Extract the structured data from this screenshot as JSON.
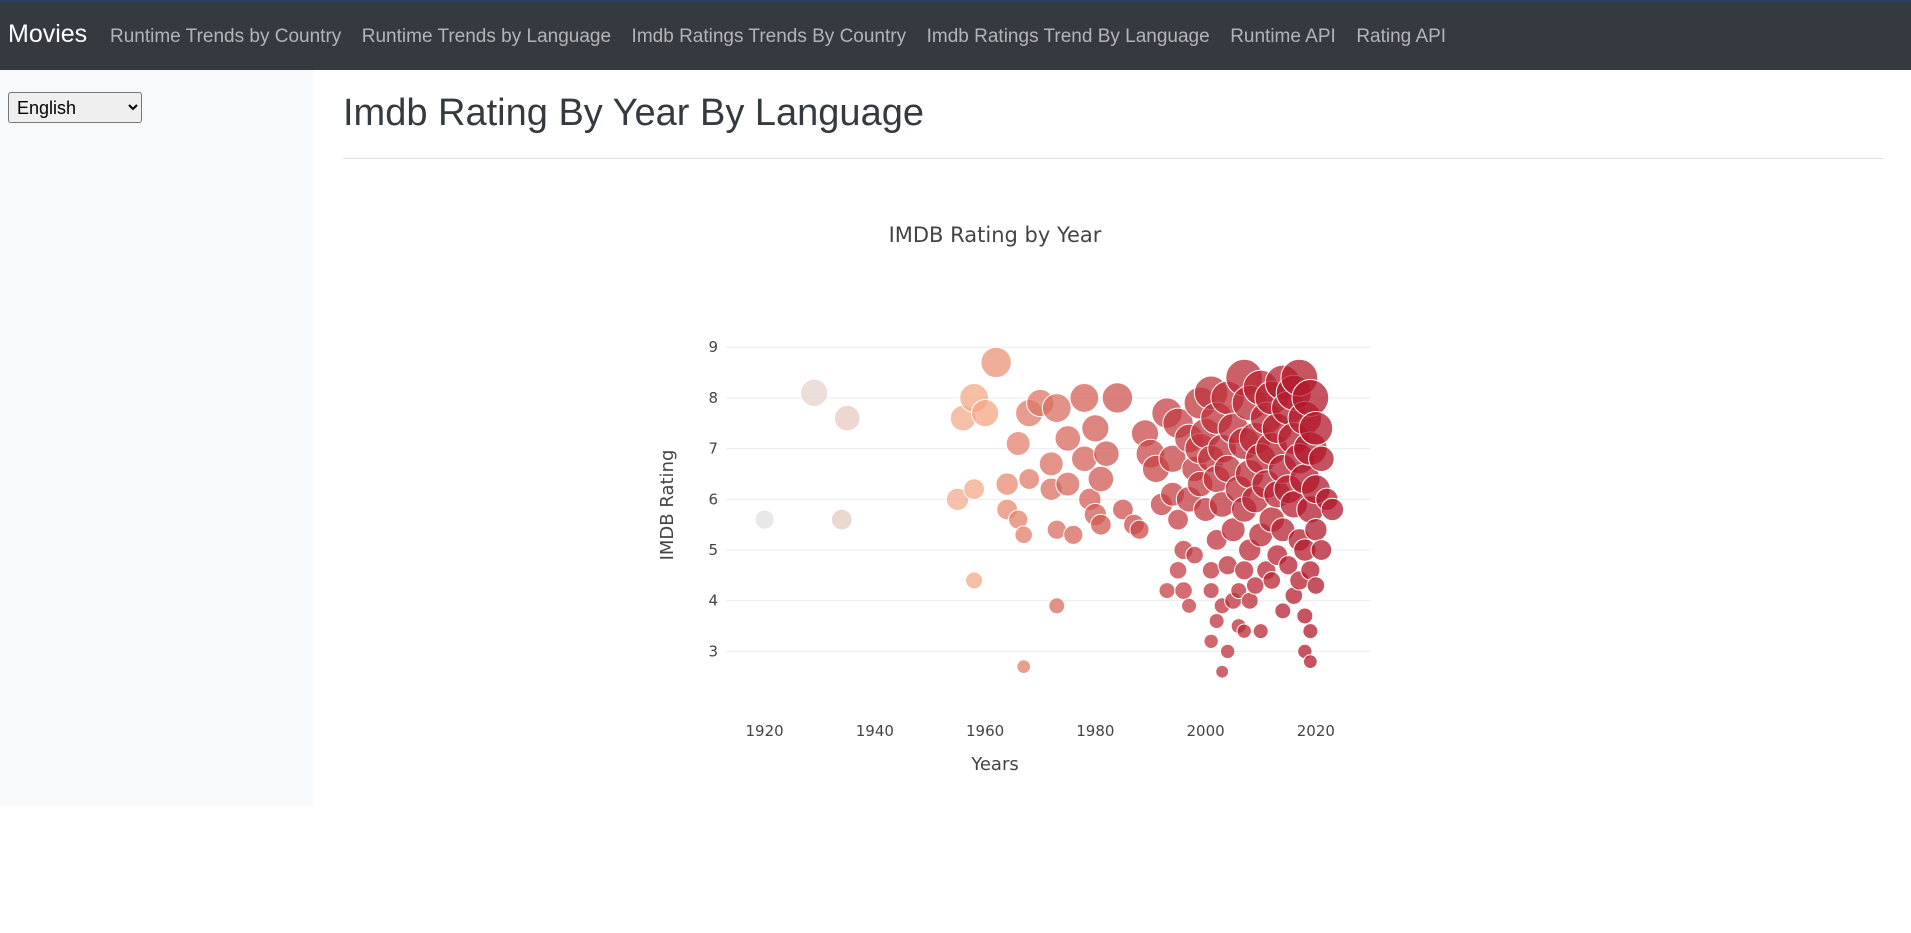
{
  "navbar": {
    "brand": "Movies",
    "links": [
      "Runtime Trends by Country",
      "Runtime Trends by Language",
      "Imdb Ratings Trends By Country",
      "Imdb Ratings Trend By Language",
      "Runtime API",
      "Rating API"
    ]
  },
  "sidebar": {
    "language_select": {
      "value": "English",
      "options": [
        "English"
      ]
    }
  },
  "main": {
    "page_title": "Imdb Rating By Year By Language"
  },
  "colors": {
    "navbar_bg": "#343a40",
    "sidebar_bg": "#f8f9fa",
    "scale_low": "#e0e0e0",
    "scale_mid": "#f4a582",
    "scale_high": "#b2182b"
  },
  "chart_data": {
    "type": "scatter",
    "title": "IMDB Rating by Year",
    "xlabel": "Years",
    "ylabel": "IMDB Rating",
    "xlim": [
      1913,
      2030
    ],
    "ylim": [
      2.2,
      9.3
    ],
    "xticks": [
      1920,
      1940,
      1960,
      1980,
      2000,
      2020
    ],
    "yticks": [
      3,
      4,
      5,
      6,
      7,
      8,
      9
    ],
    "marker_size_encodes": "votes (relative)",
    "marker_color_encodes": "year",
    "grid": true,
    "points": [
      {
        "x": 1920,
        "y": 5.6,
        "s": 0.35
      },
      {
        "x": 1929,
        "y": 8.1,
        "s": 0.6
      },
      {
        "x": 1934,
        "y": 5.6,
        "s": 0.4
      },
      {
        "x": 1935,
        "y": 7.6,
        "s": 0.55
      },
      {
        "x": 1955,
        "y": 6.0,
        "s": 0.45
      },
      {
        "x": 1956,
        "y": 7.6,
        "s": 0.55
      },
      {
        "x": 1958,
        "y": 8.0,
        "s": 0.65
      },
      {
        "x": 1958,
        "y": 6.2,
        "s": 0.4
      },
      {
        "x": 1958,
        "y": 4.4,
        "s": 0.28
      },
      {
        "x": 1960,
        "y": 7.7,
        "s": 0.6
      },
      {
        "x": 1962,
        "y": 8.7,
        "s": 0.7
      },
      {
        "x": 1964,
        "y": 6.3,
        "s": 0.45
      },
      {
        "x": 1964,
        "y": 5.8,
        "s": 0.4
      },
      {
        "x": 1966,
        "y": 7.1,
        "s": 0.5
      },
      {
        "x": 1966,
        "y": 5.6,
        "s": 0.35
      },
      {
        "x": 1967,
        "y": 5.3,
        "s": 0.3
      },
      {
        "x": 1967,
        "y": 2.7,
        "s": 0.18
      },
      {
        "x": 1968,
        "y": 7.7,
        "s": 0.6
      },
      {
        "x": 1968,
        "y": 6.4,
        "s": 0.4
      },
      {
        "x": 1970,
        "y": 7.9,
        "s": 0.6
      },
      {
        "x": 1972,
        "y": 6.7,
        "s": 0.5
      },
      {
        "x": 1972,
        "y": 6.2,
        "s": 0.45
      },
      {
        "x": 1973,
        "y": 7.8,
        "s": 0.65
      },
      {
        "x": 1973,
        "y": 5.4,
        "s": 0.35
      },
      {
        "x": 1973,
        "y": 3.9,
        "s": 0.25
      },
      {
        "x": 1975,
        "y": 7.2,
        "s": 0.55
      },
      {
        "x": 1975,
        "y": 6.3,
        "s": 0.5
      },
      {
        "x": 1976,
        "y": 5.3,
        "s": 0.35
      },
      {
        "x": 1978,
        "y": 8.0,
        "s": 0.65
      },
      {
        "x": 1978,
        "y": 6.8,
        "s": 0.55
      },
      {
        "x": 1979,
        "y": 6.0,
        "s": 0.45
      },
      {
        "x": 1980,
        "y": 7.4,
        "s": 0.6
      },
      {
        "x": 1980,
        "y": 5.7,
        "s": 0.45
      },
      {
        "x": 1981,
        "y": 6.4,
        "s": 0.55
      },
      {
        "x": 1981,
        "y": 5.5,
        "s": 0.4
      },
      {
        "x": 1982,
        "y": 6.9,
        "s": 0.55
      },
      {
        "x": 1984,
        "y": 8.0,
        "s": 0.7
      },
      {
        "x": 1985,
        "y": 5.8,
        "s": 0.4
      },
      {
        "x": 1987,
        "y": 5.5,
        "s": 0.4
      },
      {
        "x": 1988,
        "y": 5.4,
        "s": 0.35
      },
      {
        "x": 1989,
        "y": 7.3,
        "s": 0.6
      },
      {
        "x": 1990,
        "y": 6.9,
        "s": 0.65
      },
      {
        "x": 1991,
        "y": 6.6,
        "s": 0.6
      },
      {
        "x": 1992,
        "y": 5.9,
        "s": 0.45
      },
      {
        "x": 1993,
        "y": 7.7,
        "s": 0.7
      },
      {
        "x": 1993,
        "y": 4.2,
        "s": 0.25
      },
      {
        "x": 1994,
        "y": 6.8,
        "s": 0.6
      },
      {
        "x": 1994,
        "y": 6.1,
        "s": 0.5
      },
      {
        "x": 1995,
        "y": 7.5,
        "s": 0.7
      },
      {
        "x": 1995,
        "y": 5.6,
        "s": 0.4
      },
      {
        "x": 1995,
        "y": 4.6,
        "s": 0.3
      },
      {
        "x": 1996,
        "y": 5.0,
        "s": 0.35
      },
      {
        "x": 1996,
        "y": 4.2,
        "s": 0.3
      },
      {
        "x": 1997,
        "y": 7.2,
        "s": 0.65
      },
      {
        "x": 1997,
        "y": 6.0,
        "s": 0.55
      },
      {
        "x": 1997,
        "y": 3.9,
        "s": 0.22
      },
      {
        "x": 1998,
        "y": 6.6,
        "s": 0.55
      },
      {
        "x": 1998,
        "y": 4.9,
        "s": 0.3
      },
      {
        "x": 1999,
        "y": 7.9,
        "s": 0.75
      },
      {
        "x": 1999,
        "y": 7.0,
        "s": 0.7
      },
      {
        "x": 1999,
        "y": 6.3,
        "s": 0.55
      },
      {
        "x": 2000,
        "y": 5.8,
        "s": 0.5
      },
      {
        "x": 2000,
        "y": 7.3,
        "s": 0.7
      },
      {
        "x": 2001,
        "y": 8.1,
        "s": 0.8
      },
      {
        "x": 2001,
        "y": 6.8,
        "s": 0.6
      },
      {
        "x": 2001,
        "y": 4.6,
        "s": 0.3
      },
      {
        "x": 2001,
        "y": 4.2,
        "s": 0.25
      },
      {
        "x": 2001,
        "y": 3.2,
        "s": 0.2
      },
      {
        "x": 2002,
        "y": 7.6,
        "s": 0.75
      },
      {
        "x": 2002,
        "y": 6.4,
        "s": 0.6
      },
      {
        "x": 2002,
        "y": 5.2,
        "s": 0.4
      },
      {
        "x": 2002,
        "y": 3.6,
        "s": 0.22
      },
      {
        "x": 2003,
        "y": 7.0,
        "s": 0.65
      },
      {
        "x": 2003,
        "y": 5.9,
        "s": 0.55
      },
      {
        "x": 2003,
        "y": 3.9,
        "s": 0.25
      },
      {
        "x": 2003,
        "y": 2.6,
        "s": 0.15
      },
      {
        "x": 2004,
        "y": 8.0,
        "s": 0.8
      },
      {
        "x": 2004,
        "y": 6.6,
        "s": 0.6
      },
      {
        "x": 2004,
        "y": 4.7,
        "s": 0.35
      },
      {
        "x": 2004,
        "y": 3.0,
        "s": 0.2
      },
      {
        "x": 2005,
        "y": 7.4,
        "s": 0.7
      },
      {
        "x": 2005,
        "y": 5.4,
        "s": 0.5
      },
      {
        "x": 2005,
        "y": 4.0,
        "s": 0.28
      },
      {
        "x": 2006,
        "y": 6.2,
        "s": 0.6
      },
      {
        "x": 2006,
        "y": 4.2,
        "s": 0.25
      },
      {
        "x": 2006,
        "y": 3.5,
        "s": 0.22
      },
      {
        "x": 2007,
        "y": 8.4,
        "s": 0.9
      },
      {
        "x": 2007,
        "y": 7.1,
        "s": 0.75
      },
      {
        "x": 2007,
        "y": 5.8,
        "s": 0.55
      },
      {
        "x": 2007,
        "y": 4.6,
        "s": 0.35
      },
      {
        "x": 2007,
        "y": 3.4,
        "s": 0.2
      },
      {
        "x": 2008,
        "y": 7.9,
        "s": 0.85
      },
      {
        "x": 2008,
        "y": 6.5,
        "s": 0.65
      },
      {
        "x": 2008,
        "y": 5.0,
        "s": 0.45
      },
      {
        "x": 2008,
        "y": 4.0,
        "s": 0.28
      },
      {
        "x": 2009,
        "y": 7.2,
        "s": 0.75
      },
      {
        "x": 2009,
        "y": 6.0,
        "s": 0.6
      },
      {
        "x": 2009,
        "y": 4.3,
        "s": 0.3
      },
      {
        "x": 2010,
        "y": 8.2,
        "s": 0.85
      },
      {
        "x": 2010,
        "y": 6.8,
        "s": 0.7
      },
      {
        "x": 2010,
        "y": 5.3,
        "s": 0.5
      },
      {
        "x": 2010,
        "y": 3.4,
        "s": 0.22
      },
      {
        "x": 2011,
        "y": 7.6,
        "s": 0.75
      },
      {
        "x": 2011,
        "y": 6.3,
        "s": 0.65
      },
      {
        "x": 2011,
        "y": 4.6,
        "s": 0.35
      },
      {
        "x": 2012,
        "y": 8.0,
        "s": 0.8
      },
      {
        "x": 2012,
        "y": 7.0,
        "s": 0.75
      },
      {
        "x": 2012,
        "y": 5.6,
        "s": 0.55
      },
      {
        "x": 2012,
        "y": 4.4,
        "s": 0.3
      },
      {
        "x": 2013,
        "y": 7.4,
        "s": 0.7
      },
      {
        "x": 2013,
        "y": 6.1,
        "s": 0.6
      },
      {
        "x": 2013,
        "y": 4.9,
        "s": 0.4
      },
      {
        "x": 2014,
        "y": 8.3,
        "s": 0.85
      },
      {
        "x": 2014,
        "y": 6.6,
        "s": 0.65
      },
      {
        "x": 2014,
        "y": 5.4,
        "s": 0.5
      },
      {
        "x": 2014,
        "y": 3.8,
        "s": 0.25
      },
      {
        "x": 2015,
        "y": 7.8,
        "s": 0.8
      },
      {
        "x": 2015,
        "y": 6.2,
        "s": 0.65
      },
      {
        "x": 2015,
        "y": 4.7,
        "s": 0.35
      },
      {
        "x": 2016,
        "y": 8.1,
        "s": 0.85
      },
      {
        "x": 2016,
        "y": 7.2,
        "s": 0.75
      },
      {
        "x": 2016,
        "y": 5.9,
        "s": 0.6
      },
      {
        "x": 2016,
        "y": 4.1,
        "s": 0.3
      },
      {
        "x": 2017,
        "y": 8.4,
        "s": 0.9
      },
      {
        "x": 2017,
        "y": 6.8,
        "s": 0.7
      },
      {
        "x": 2017,
        "y": 5.2,
        "s": 0.45
      },
      {
        "x": 2017,
        "y": 4.4,
        "s": 0.35
      },
      {
        "x": 2018,
        "y": 7.6,
        "s": 0.8
      },
      {
        "x": 2018,
        "y": 6.4,
        "s": 0.7
      },
      {
        "x": 2018,
        "y": 5.0,
        "s": 0.45
      },
      {
        "x": 2018,
        "y": 3.7,
        "s": 0.25
      },
      {
        "x": 2018,
        "y": 3.0,
        "s": 0.2
      },
      {
        "x": 2019,
        "y": 8.0,
        "s": 0.9
      },
      {
        "x": 2019,
        "y": 7.0,
        "s": 0.8
      },
      {
        "x": 2019,
        "y": 5.8,
        "s": 0.6
      },
      {
        "x": 2019,
        "y": 4.6,
        "s": 0.35
      },
      {
        "x": 2019,
        "y": 3.4,
        "s": 0.22
      },
      {
        "x": 2019,
        "y": 2.8,
        "s": 0.18
      },
      {
        "x": 2020,
        "y": 7.4,
        "s": 0.8
      },
      {
        "x": 2020,
        "y": 6.2,
        "s": 0.65
      },
      {
        "x": 2020,
        "y": 5.4,
        "s": 0.45
      },
      {
        "x": 2020,
        "y": 4.3,
        "s": 0.3
      },
      {
        "x": 2021,
        "y": 6.8,
        "s": 0.55
      },
      {
        "x": 2021,
        "y": 5.0,
        "s": 0.4
      },
      {
        "x": 2022,
        "y": 6.0,
        "s": 0.45
      },
      {
        "x": 2023,
        "y": 5.8,
        "s": 0.45
      }
    ]
  }
}
